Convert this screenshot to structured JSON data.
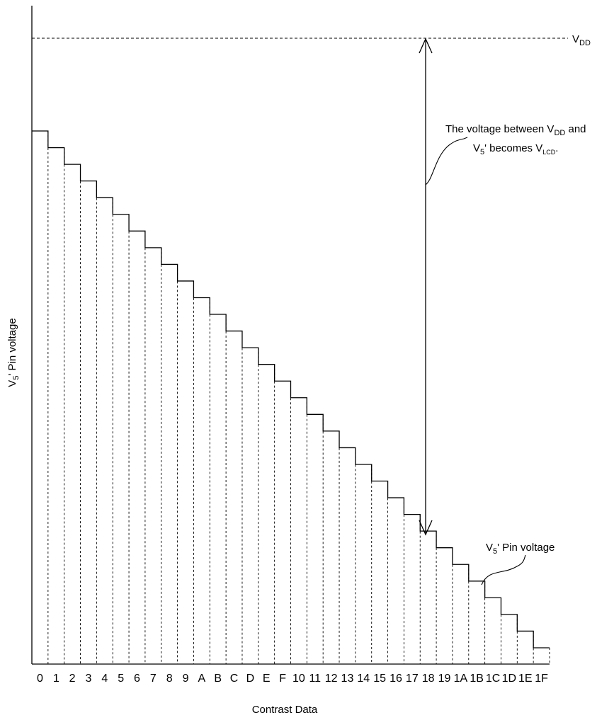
{
  "chart_data": {
    "type": "line",
    "subtype": "step",
    "xlabel": "Contrast Data",
    "ylabel": {
      "main": "V",
      "sub": "5",
      "suffix": "' Pin voltage"
    },
    "x": [
      "0",
      "1",
      "2",
      "3",
      "4",
      "5",
      "6",
      "7",
      "8",
      "9",
      "A",
      "B",
      "C",
      "D",
      "E",
      "F",
      "10",
      "11",
      "12",
      "13",
      "14",
      "15",
      "16",
      "17",
      "18",
      "19",
      "1A",
      "1B",
      "1C",
      "1D",
      "1E",
      "1F"
    ],
    "series": [
      {
        "values": [
          31,
          30,
          29,
          28,
          27,
          26,
          25,
          24,
          23,
          22,
          21,
          20,
          19,
          18,
          17,
          16,
          15,
          14,
          13,
          12,
          11,
          10,
          9,
          8,
          7,
          6,
          5,
          4,
          3,
          2,
          1,
          0
        ]
      }
    ],
    "vdd_label": {
      "main": "V",
      "sub": "DD"
    },
    "annotations": {
      "vlcd": {
        "line1": {
          "pre": "The voltage between V",
          "sub": "DD",
          "post": " and"
        },
        "line2": {
          "pre": "V",
          "sub": "5",
          "mid": "' becomes V",
          "sub2": "LCD",
          "post": "."
        }
      },
      "pin": {
        "main": "V",
        "sub": "5",
        "suffix": "' Pin voltage"
      }
    },
    "grid": false
  }
}
